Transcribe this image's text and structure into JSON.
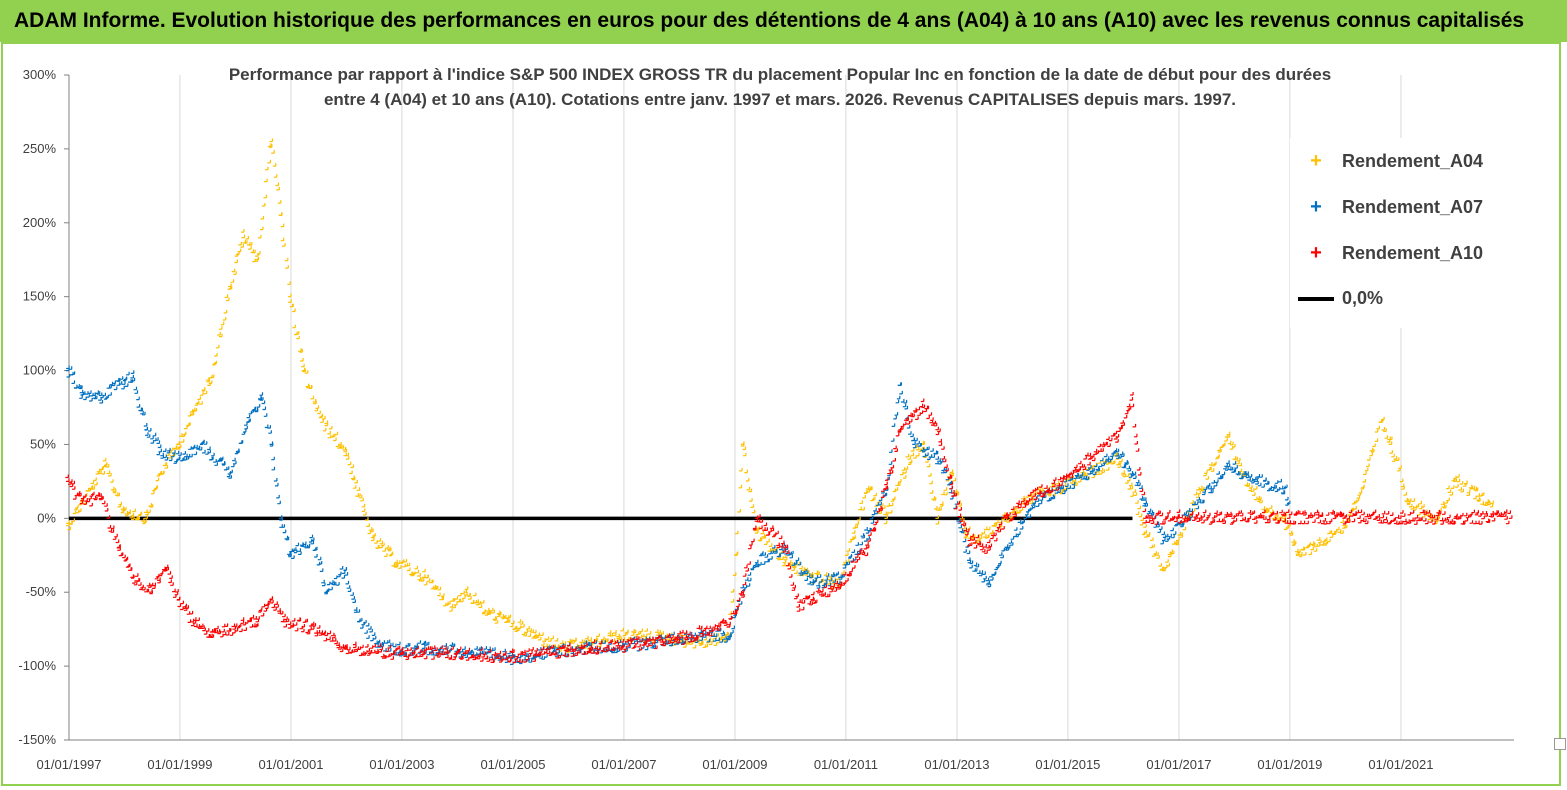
{
  "banner": {
    "title": "ADAM Informe. Evolution historique des performances en euros pour des détentions de 4 ans (A04) à 10 ans (A10) avec les revenus connus capitalisés"
  },
  "chart_data": {
    "type": "scatter",
    "title_line1": "Performance par rapport à l'indice S&P 500 INDEX GROSS TR  du placement Popular Inc en fonction de la date de début pour des durées",
    "title_line2": "entre 4 (A04) et 10 ans (A10). Cotations entre janv. 1997 et mars. 2026. Revenus CAPITALISES depuis mars. 1997.",
    "xlabel": "",
    "ylabel": "",
    "xlim": [
      "1997-01-01",
      "2023-01-15"
    ],
    "ylim": [
      -150,
      300
    ],
    "x_ticks": [
      "01/01/1997",
      "01/01/1999",
      "01/01/2001",
      "01/01/2003",
      "01/01/2005",
      "01/01/2007",
      "01/01/2009",
      "01/01/2011",
      "01/01/2013",
      "01/01/2015",
      "01/01/2017",
      "01/01/2019",
      "01/01/2021"
    ],
    "y_ticks": [
      "-150%",
      "-100%",
      "-50%",
      "0%",
      "50%",
      "100%",
      "150%",
      "200%",
      "250%",
      "300%"
    ],
    "grid": "vertical",
    "legend_position": "top-right",
    "reference_line": {
      "name": "0,0%",
      "value": 0,
      "color": "#000000"
    },
    "series": [
      {
        "name": "Rendement_A04",
        "color": "#ffc000",
        "marker": "+",
        "points": [
          [
            "1997-01-01",
            -5
          ],
          [
            "1997-06-01",
            20
          ],
          [
            "1997-09-01",
            35
          ],
          [
            "1998-01-01",
            5
          ],
          [
            "1998-06-01",
            0
          ],
          [
            "1998-09-01",
            30
          ],
          [
            "1999-01-01",
            50
          ],
          [
            "1999-04-01",
            70
          ],
          [
            "1999-08-01",
            95
          ],
          [
            "1999-12-01",
            155
          ],
          [
            "2000-03-01",
            190
          ],
          [
            "2000-06-01",
            175
          ],
          [
            "2000-09-01",
            255
          ],
          [
            "2000-11-01",
            205
          ],
          [
            "2001-01-01",
            150
          ],
          [
            "2001-04-01",
            100
          ],
          [
            "2001-08-01",
            65
          ],
          [
            "2002-01-01",
            45
          ],
          [
            "2002-04-01",
            15
          ],
          [
            "2002-07-01",
            -15
          ],
          [
            "2002-12-01",
            -30
          ],
          [
            "2003-06-01",
            -40
          ],
          [
            "2003-12-01",
            -60
          ],
          [
            "2004-03-01",
            -50
          ],
          [
            "2004-08-01",
            -65
          ],
          [
            "2004-12-01",
            -70
          ],
          [
            "2005-06-01",
            -80
          ],
          [
            "2005-12-01",
            -88
          ],
          [
            "2006-06-01",
            -85
          ],
          [
            "2006-12-01",
            -80
          ],
          [
            "2007-06-01",
            -80
          ],
          [
            "2007-12-01",
            -82
          ],
          [
            "2008-06-01",
            -85
          ],
          [
            "2008-12-01",
            -80
          ],
          [
            "2009-01-15",
            -25
          ],
          [
            "2009-03-01",
            50
          ],
          [
            "2009-06-01",
            -10
          ],
          [
            "2009-12-01",
            -30
          ],
          [
            "2010-06-01",
            -40
          ],
          [
            "2010-12-01",
            -45
          ],
          [
            "2011-03-01",
            -10
          ],
          [
            "2011-06-01",
            20
          ],
          [
            "2011-10-01",
            0
          ],
          [
            "2012-03-01",
            40
          ],
          [
            "2012-06-01",
            50
          ],
          [
            "2012-09-01",
            0
          ],
          [
            "2012-12-01",
            30
          ],
          [
            "2013-03-01",
            -10
          ],
          [
            "2013-06-01",
            -15
          ],
          [
            "2013-12-01",
            0
          ],
          [
            "2014-06-01",
            15
          ],
          [
            "2014-12-01",
            20
          ],
          [
            "2015-06-01",
            30
          ],
          [
            "2015-12-01",
            40
          ],
          [
            "2016-03-01",
            20
          ],
          [
            "2016-06-01",
            -10
          ],
          [
            "2016-10-01",
            -35
          ],
          [
            "2017-01-01",
            -15
          ],
          [
            "2017-06-01",
            20
          ],
          [
            "2017-12-01",
            55
          ],
          [
            "2018-03-01",
            30
          ],
          [
            "2018-08-01",
            5
          ],
          [
            "2018-12-01",
            0
          ],
          [
            "2019-03-01",
            -25
          ],
          [
            "2019-09-01",
            -15
          ],
          [
            "2020-01-01",
            -5
          ],
          [
            "2020-05-01",
            20
          ],
          [
            "2020-09-01",
            65
          ],
          [
            "2020-11-01",
            50
          ],
          [
            "2021-03-01",
            10
          ],
          [
            "2021-09-01",
            0
          ],
          [
            "2022-01-01",
            25
          ],
          [
            "2022-06-01",
            15
          ],
          [
            "2022-09-01",
            10
          ]
        ]
      },
      {
        "name": "Rendement_A07",
        "color": "#0070c0",
        "marker": "+",
        "points": [
          [
            "1997-01-01",
            100
          ],
          [
            "1997-04-01",
            85
          ],
          [
            "1997-08-01",
            80
          ],
          [
            "1997-12-01",
            90
          ],
          [
            "1998-03-01",
            95
          ],
          [
            "1998-06-01",
            60
          ],
          [
            "1998-09-01",
            45
          ],
          [
            "1999-01-01",
            40
          ],
          [
            "1999-06-01",
            50
          ],
          [
            "1999-12-01",
            30
          ],
          [
            "2000-04-01",
            65
          ],
          [
            "2000-07-01",
            80
          ],
          [
            "2000-09-01",
            50
          ],
          [
            "2000-11-01",
            0
          ],
          [
            "2001-01-01",
            -25
          ],
          [
            "2001-06-01",
            -15
          ],
          [
            "2001-09-01",
            -50
          ],
          [
            "2002-01-01",
            -35
          ],
          [
            "2002-04-01",
            -70
          ],
          [
            "2002-08-01",
            -85
          ],
          [
            "2003-01-01",
            -90
          ],
          [
            "2003-06-01",
            -88
          ],
          [
            "2004-01-01",
            -90
          ],
          [
            "2004-06-01",
            -92
          ],
          [
            "2005-01-01",
            -95
          ],
          [
            "2005-06-01",
            -93
          ],
          [
            "2006-01-01",
            -90
          ],
          [
            "2006-06-01",
            -88
          ],
          [
            "2007-01-01",
            -87
          ],
          [
            "2007-06-01",
            -85
          ],
          [
            "2008-01-01",
            -82
          ],
          [
            "2008-06-01",
            -80
          ],
          [
            "2008-12-01",
            -80
          ],
          [
            "2009-03-01",
            -50
          ],
          [
            "2009-06-01",
            -30
          ],
          [
            "2009-12-01",
            -20
          ],
          [
            "2010-06-01",
            -45
          ],
          [
            "2010-12-01",
            -40
          ],
          [
            "2011-06-01",
            -10
          ],
          [
            "2011-10-01",
            20
          ],
          [
            "2012-01-01",
            90
          ],
          [
            "2012-04-01",
            50
          ],
          [
            "2012-09-01",
            40
          ],
          [
            "2012-12-01",
            20
          ],
          [
            "2013-04-01",
            -30
          ],
          [
            "2013-08-01",
            -45
          ],
          [
            "2013-12-01",
            -20
          ],
          [
            "2014-06-01",
            10
          ],
          [
            "2014-12-01",
            20
          ],
          [
            "2015-06-01",
            30
          ],
          [
            "2015-12-01",
            45
          ],
          [
            "2016-03-01",
            30
          ],
          [
            "2016-06-01",
            10
          ],
          [
            "2016-10-01",
            -15
          ],
          [
            "2017-03-01",
            0
          ],
          [
            "2017-08-01",
            20
          ],
          [
            "2017-12-01",
            35
          ],
          [
            "2018-06-01",
            25
          ],
          [
            "2018-12-01",
            20
          ],
          [
            "2019-01-01",
            10
          ]
        ]
      },
      {
        "name": "Rendement_A10",
        "color": "#ff0000",
        "marker": "+",
        "points": [
          [
            "1997-01-01",
            25
          ],
          [
            "1997-04-01",
            10
          ],
          [
            "1997-08-01",
            15
          ],
          [
            "1997-12-01",
            -20
          ],
          [
            "1998-03-01",
            -40
          ],
          [
            "1998-07-01",
            -50
          ],
          [
            "1998-10-01",
            -35
          ],
          [
            "1999-01-01",
            -55
          ],
          [
            "1999-04-01",
            -70
          ],
          [
            "1999-08-01",
            -80
          ],
          [
            "2000-01-01",
            -75
          ],
          [
            "2000-06-01",
            -70
          ],
          [
            "2000-09-01",
            -55
          ],
          [
            "2000-12-01",
            -70
          ],
          [
            "2001-06-01",
            -75
          ],
          [
            "2002-01-01",
            -88
          ],
          [
            "2002-06-01",
            -90
          ],
          [
            "2003-01-01",
            -92
          ],
          [
            "2003-06-01",
            -92
          ],
          [
            "2004-01-01",
            -92
          ],
          [
            "2004-06-01",
            -93
          ],
          [
            "2005-01-01",
            -94
          ],
          [
            "2005-06-01",
            -93
          ],
          [
            "2006-01-01",
            -90
          ],
          [
            "2006-06-01",
            -88
          ],
          [
            "2007-01-01",
            -87
          ],
          [
            "2007-06-01",
            -85
          ],
          [
            "2008-01-01",
            -82
          ],
          [
            "2008-06-01",
            -78
          ],
          [
            "2008-12-01",
            -72
          ],
          [
            "2009-03-01",
            -50
          ],
          [
            "2009-06-01",
            0
          ],
          [
            "2009-12-01",
            -20
          ],
          [
            "2010-03-01",
            -60
          ],
          [
            "2010-06-01",
            -55
          ],
          [
            "2010-12-01",
            -45
          ],
          [
            "2011-06-01",
            -20
          ],
          [
            "2011-10-01",
            20
          ],
          [
            "2012-01-01",
            60
          ],
          [
            "2012-06-01",
            75
          ],
          [
            "2012-09-01",
            60
          ],
          [
            "2012-12-01",
            20
          ],
          [
            "2013-04-01",
            -15
          ],
          [
            "2013-08-01",
            -20
          ],
          [
            "2013-12-01",
            0
          ],
          [
            "2014-06-01",
            15
          ],
          [
            "2014-12-01",
            25
          ],
          [
            "2015-06-01",
            40
          ],
          [
            "2015-12-01",
            55
          ],
          [
            "2016-03-01",
            80
          ],
          [
            "2016-06-01",
            0
          ],
          [
            "2017-01-01",
            0
          ],
          [
            "2018-01-01",
            0
          ],
          [
            "2019-01-01",
            0
          ],
          [
            "2020-01-01",
            0
          ],
          [
            "2021-01-01",
            0
          ],
          [
            "2022-01-01",
            0
          ],
          [
            "2023-01-01",
            0
          ]
        ]
      }
    ]
  }
}
